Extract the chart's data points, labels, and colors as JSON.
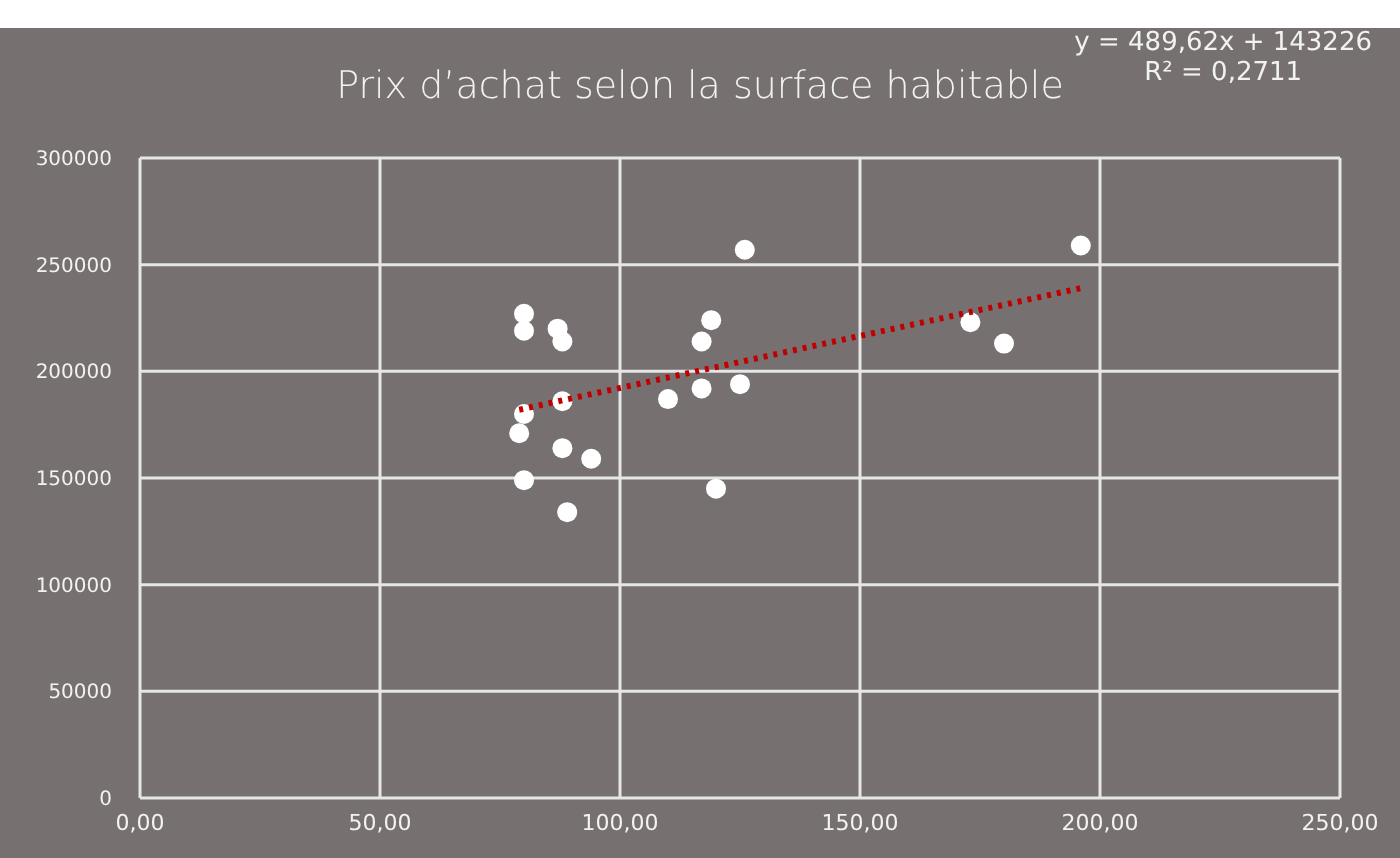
{
  "chart_data": {
    "type": "scatter",
    "title": "Prix d’achat selon la surface habitable",
    "annotations": [
      "y = 489,62x + 143226",
      "R² = 0,2711"
    ],
    "xlim": [
      0,
      250
    ],
    "xticks": [
      {
        "value": 0,
        "label": "0,00"
      },
      {
        "value": 50,
        "label": "50,00"
      },
      {
        "value": 100,
        "label": "100,00"
      },
      {
        "value": 150,
        "label": "150,00"
      },
      {
        "value": 200,
        "label": "200,00"
      },
      {
        "value": 250,
        "label": "250,00"
      }
    ],
    "ylim": [
      0,
      300000
    ],
    "yticks": [
      0,
      50000,
      100000,
      150000,
      200000,
      250000,
      300000
    ],
    "grid": true,
    "series": [
      {
        "marker": "circle",
        "color": "#ffffff",
        "x": [
          126,
          80,
          80,
          87,
          88,
          119,
          117,
          88,
          80,
          79,
          110,
          117,
          125,
          88,
          94,
          80,
          120,
          89,
          196,
          173,
          180
        ],
        "values": [
          257000,
          227000,
          219000,
          220000,
          214000,
          224000,
          214000,
          186000,
          180000,
          171000,
          187000,
          192000,
          194000,
          164000,
          159000,
          149000,
          145000,
          134000,
          259000,
          223000,
          213000
        ]
      },
      {
        "type": "line",
        "marker": "none",
        "line_style": "dotted",
        "color": "#c00000",
        "x": [
          79,
          196
        ],
        "values": [
          182000,
          239000
        ]
      }
    ]
  }
}
